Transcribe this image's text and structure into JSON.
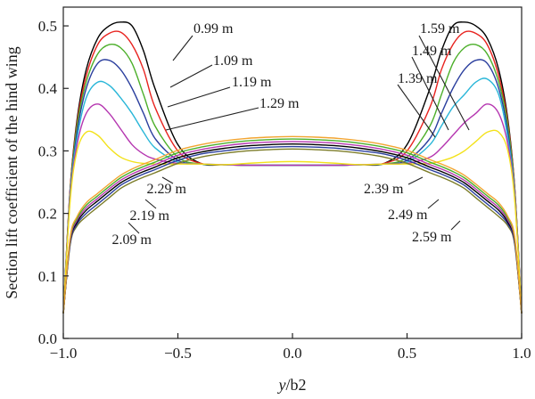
{
  "chart_data": {
    "type": "line",
    "title": "",
    "xlabel_parts": [
      "y",
      "/b2"
    ],
    "ylabel": "Section lift coefficient of the hind wing",
    "xlim": [
      -1.0,
      1.0
    ],
    "ylim": [
      0.0,
      0.53
    ],
    "x_ticks": [
      -1.0,
      -0.5,
      0.0,
      0.5,
      1.0
    ],
    "x_tick_labels": [
      "−1.0",
      "−0.5",
      "0.0",
      "0.5",
      "1.0"
    ],
    "y_ticks": [
      0.0,
      0.1,
      0.2,
      0.3,
      0.4,
      0.5
    ],
    "y_tick_labels": [
      "0.0",
      "0.1",
      "0.2",
      "0.3",
      "0.4",
      "0.5"
    ],
    "grid": false,
    "x": [
      -1.0,
      -0.97,
      -0.94,
      -0.9,
      -0.85,
      -0.8,
      -0.75,
      -0.7,
      -0.65,
      -0.6,
      -0.5,
      -0.4,
      -0.3,
      -0.2,
      -0.1,
      0.0,
      0.1,
      0.2,
      0.3,
      0.4,
      0.5,
      0.6,
      0.65,
      0.7,
      0.75,
      0.8,
      0.85,
      0.9,
      0.94,
      0.97,
      1.0
    ],
    "series": [
      {
        "label": "0.99 m",
        "color": "#000000",
        "values": [
          0.04,
          0.24,
          0.35,
          0.43,
          0.48,
          0.5,
          0.506,
          0.5,
          0.46,
          0.4,
          0.31,
          0.28,
          0.278,
          0.277,
          0.277,
          0.277,
          0.277,
          0.277,
          0.278,
          0.28,
          0.31,
          0.4,
          0.46,
          0.5,
          0.506,
          0.5,
          0.48,
          0.43,
          0.35,
          0.24,
          0.04
        ]
      },
      {
        "label": "1.09 m",
        "color": "#e8231f",
        "values": [
          0.04,
          0.24,
          0.345,
          0.42,
          0.47,
          0.488,
          0.49,
          0.47,
          0.43,
          0.37,
          0.3,
          0.28,
          0.278,
          0.277,
          0.277,
          0.277,
          0.277,
          0.277,
          0.278,
          0.28,
          0.3,
          0.37,
          0.43,
          0.47,
          0.49,
          0.488,
          0.47,
          0.42,
          0.345,
          0.24,
          0.04
        ]
      },
      {
        "label": "1.19 m",
        "color": "#4caf2a",
        "values": [
          0.04,
          0.235,
          0.34,
          0.41,
          0.455,
          0.47,
          0.465,
          0.44,
          0.39,
          0.34,
          0.29,
          0.279,
          0.278,
          0.277,
          0.277,
          0.277,
          0.277,
          0.277,
          0.278,
          0.279,
          0.29,
          0.34,
          0.39,
          0.44,
          0.465,
          0.47,
          0.455,
          0.41,
          0.34,
          0.235,
          0.04
        ]
      },
      {
        "label": "1.29 m",
        "color": "#2b3f9e",
        "values": [
          0.04,
          0.23,
          0.33,
          0.4,
          0.44,
          0.445,
          0.43,
          0.4,
          0.36,
          0.32,
          0.285,
          0.279,
          0.278,
          0.277,
          0.277,
          0.277,
          0.277,
          0.277,
          0.278,
          0.279,
          0.285,
          0.32,
          0.36,
          0.4,
          0.43,
          0.445,
          0.44,
          0.4,
          0.33,
          0.23,
          0.04
        ]
      },
      {
        "label": "1.39 m",
        "color": "#29b6d8",
        "values": [
          0.04,
          0.23,
          0.32,
          0.385,
          0.41,
          0.405,
          0.385,
          0.36,
          0.33,
          0.305,
          0.282,
          0.279,
          0.278,
          0.277,
          0.277,
          0.277,
          0.277,
          0.277,
          0.278,
          0.279,
          0.282,
          0.31,
          0.34,
          0.37,
          0.39,
          0.41,
          0.415,
          0.39,
          0.32,
          0.23,
          0.04
        ]
      },
      {
        "label": "1.49 m",
        "color": "#b536b0",
        "values": [
          0.04,
          0.225,
          0.31,
          0.36,
          0.375,
          0.36,
          0.335,
          0.31,
          0.295,
          0.287,
          0.28,
          0.279,
          0.278,
          0.277,
          0.277,
          0.277,
          0.277,
          0.277,
          0.278,
          0.279,
          0.28,
          0.29,
          0.305,
          0.325,
          0.345,
          0.36,
          0.375,
          0.36,
          0.31,
          0.225,
          0.04
        ]
      },
      {
        "label": "1.59 m",
        "color": "#f3e21b",
        "values": [
          0.04,
          0.22,
          0.3,
          0.33,
          0.325,
          0.305,
          0.29,
          0.283,
          0.28,
          0.279,
          0.279,
          0.279,
          0.278,
          0.28,
          0.282,
          0.283,
          0.282,
          0.28,
          0.278,
          0.279,
          0.279,
          0.28,
          0.284,
          0.29,
          0.3,
          0.315,
          0.33,
          0.33,
          0.3,
          0.22,
          0.04
        ]
      },
      {
        "label": "2.09 m",
        "color": "#7c7c28",
        "values": [
          0.04,
          0.15,
          0.18,
          0.195,
          0.21,
          0.225,
          0.24,
          0.25,
          0.258,
          0.265,
          0.28,
          0.29,
          0.296,
          0.3,
          0.302,
          0.303,
          0.302,
          0.3,
          0.296,
          0.29,
          0.28,
          0.265,
          0.258,
          0.25,
          0.24,
          0.225,
          0.21,
          0.195,
          0.18,
          0.15,
          0.04
        ]
      },
      {
        "label": "2.19 m",
        "color": "#2b3f9e",
        "values": [
          0.04,
          0.152,
          0.183,
          0.2,
          0.215,
          0.23,
          0.245,
          0.255,
          0.263,
          0.27,
          0.285,
          0.295,
          0.3,
          0.304,
          0.306,
          0.307,
          0.306,
          0.304,
          0.3,
          0.295,
          0.285,
          0.27,
          0.263,
          0.255,
          0.245,
          0.23,
          0.215,
          0.2,
          0.183,
          0.152,
          0.04
        ]
      },
      {
        "label": "2.29 m",
        "color": "#000000",
        "values": [
          0.04,
          0.155,
          0.186,
          0.205,
          0.22,
          0.235,
          0.249,
          0.259,
          0.267,
          0.274,
          0.289,
          0.298,
          0.304,
          0.308,
          0.31,
          0.311,
          0.31,
          0.308,
          0.304,
          0.298,
          0.289,
          0.274,
          0.267,
          0.259,
          0.249,
          0.235,
          0.22,
          0.205,
          0.186,
          0.155,
          0.04
        ]
      },
      {
        "label": "2.39 m",
        "color": "#b536b0",
        "values": [
          0.04,
          0.157,
          0.189,
          0.209,
          0.224,
          0.239,
          0.253,
          0.263,
          0.271,
          0.278,
          0.293,
          0.302,
          0.308,
          0.312,
          0.314,
          0.315,
          0.314,
          0.312,
          0.308,
          0.302,
          0.293,
          0.278,
          0.271,
          0.263,
          0.253,
          0.239,
          0.224,
          0.209,
          0.189,
          0.157,
          0.04
        ]
      },
      {
        "label": "2.49 m",
        "color": "#4caf2a",
        "values": [
          0.04,
          0.16,
          0.192,
          0.213,
          0.228,
          0.243,
          0.257,
          0.267,
          0.275,
          0.282,
          0.297,
          0.306,
          0.312,
          0.316,
          0.318,
          0.319,
          0.318,
          0.316,
          0.312,
          0.306,
          0.297,
          0.282,
          0.275,
          0.267,
          0.257,
          0.243,
          0.228,
          0.213,
          0.192,
          0.16,
          0.04
        ]
      },
      {
        "label": "2.59 m",
        "color": "#f2a531",
        "values": [
          0.04,
          0.162,
          0.195,
          0.217,
          0.232,
          0.247,
          0.261,
          0.271,
          0.279,
          0.286,
          0.301,
          0.31,
          0.316,
          0.32,
          0.322,
          0.323,
          0.322,
          0.32,
          0.316,
          0.31,
          0.301,
          0.286,
          0.279,
          0.271,
          0.261,
          0.247,
          0.232,
          0.217,
          0.195,
          0.162,
          0.04
        ]
      }
    ],
    "annotations": [
      {
        "text": "0.99 m",
        "series": "0.99 m"
      },
      {
        "text": "1.09 m",
        "series": "1.09 m"
      },
      {
        "text": "1.19 m",
        "series": "1.19 m"
      },
      {
        "text": "1.29 m",
        "series": "1.29 m"
      },
      {
        "text": "1.59 m",
        "series": "1.59 m"
      },
      {
        "text": "1.49 m",
        "series": "1.49 m"
      },
      {
        "text": "1.39 m",
        "series": "1.39 m"
      },
      {
        "text": "2.29 m",
        "series": "2.29 m"
      },
      {
        "text": "2.19 m",
        "series": "2.19 m"
      },
      {
        "text": "2.09 m",
        "series": "2.09 m"
      },
      {
        "text": "2.39 m",
        "series": "2.39 m"
      },
      {
        "text": "2.49 m",
        "series": "2.49 m"
      },
      {
        "text": "2.59 m",
        "series": "2.59 m"
      }
    ]
  }
}
